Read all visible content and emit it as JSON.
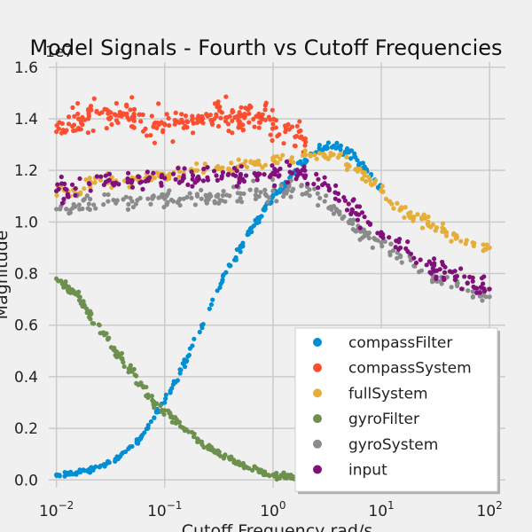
{
  "chart_data": {
    "type": "scatter",
    "title": "Model Signals - Fourth vs Cutoff Frequencies",
    "xlabel": "Cutoff Frequency rad/s",
    "ylabel": "Magnitude",
    "y_offset_text": "1e7",
    "x_scale": "log",
    "xlim": [
      0.0085,
      140
    ],
    "ylim": [
      -0.03,
      1.62
    ],
    "y_ticks": [
      0.0,
      0.2,
      0.4,
      0.6,
      0.8,
      1.0,
      1.2,
      1.4,
      1.6
    ],
    "y_tick_labels": [
      "0.0",
      "0.2",
      "0.4",
      "0.6",
      "0.8",
      "1.0",
      "1.2",
      "1.4",
      "1.6"
    ],
    "x_ticks": [
      0.01,
      0.1,
      1,
      10,
      100
    ],
    "x_tick_labels": [
      {
        "base": "10",
        "exp": "−2"
      },
      {
        "base": "10",
        "exp": "−1"
      },
      {
        "base": "10",
        "exp": "0"
      },
      {
        "base": "10",
        "exp": "1"
      },
      {
        "base": "10",
        "exp": "2"
      }
    ],
    "grid": true,
    "legend_position": "lower-right",
    "series": [
      {
        "name": "compassFilter",
        "color": "#008fd5",
        "points": [
          [
            0.01,
            0.02
          ],
          [
            0.013,
            0.025
          ],
          [
            0.016,
            0.03
          ],
          [
            0.02,
            0.04
          ],
          [
            0.025,
            0.05
          ],
          [
            0.03,
            0.07
          ],
          [
            0.035,
            0.08
          ],
          [
            0.04,
            0.1
          ],
          [
            0.05,
            0.13
          ],
          [
            0.06,
            0.16
          ],
          [
            0.07,
            0.2
          ],
          [
            0.08,
            0.24
          ],
          [
            0.1,
            0.3
          ],
          [
            0.12,
            0.37
          ],
          [
            0.15,
            0.45
          ],
          [
            0.18,
            0.52
          ],
          [
            0.22,
            0.6
          ],
          [
            0.27,
            0.68
          ],
          [
            0.33,
            0.76
          ],
          [
            0.4,
            0.83
          ],
          [
            0.5,
            0.9
          ],
          [
            0.6,
            0.96
          ],
          [
            0.7,
            1.0
          ],
          [
            0.85,
            1.05
          ],
          [
            1.0,
            1.1
          ],
          [
            1.3,
            1.15
          ],
          [
            1.6,
            1.2
          ],
          [
            2.0,
            1.24
          ],
          [
            2.5,
            1.27
          ],
          [
            3.0,
            1.29
          ],
          [
            4.0,
            1.29
          ],
          [
            5.0,
            1.27
          ],
          [
            6.0,
            1.24
          ],
          [
            7.0,
            1.21
          ],
          [
            8.0,
            1.18
          ],
          [
            10.0,
            1.14
          ]
        ]
      },
      {
        "name": "compassSystem",
        "color": "#fc4f30",
        "points": [
          [
            0.01,
            1.35
          ],
          [
            0.013,
            1.38
          ],
          [
            0.016,
            1.4
          ],
          [
            0.02,
            1.41
          ],
          [
            0.025,
            1.42
          ],
          [
            0.03,
            1.42
          ],
          [
            0.04,
            1.41
          ],
          [
            0.05,
            1.4
          ],
          [
            0.06,
            1.39
          ],
          [
            0.08,
            1.38
          ],
          [
            0.1,
            1.38
          ],
          [
            0.13,
            1.39
          ],
          [
            0.16,
            1.39
          ],
          [
            0.2,
            1.4
          ],
          [
            0.25,
            1.41
          ],
          [
            0.3,
            1.41
          ],
          [
            0.4,
            1.41
          ],
          [
            0.5,
            1.41
          ],
          [
            0.6,
            1.42
          ],
          [
            0.7,
            1.41
          ],
          [
            0.8,
            1.4
          ],
          [
            1.0,
            1.38
          ],
          [
            1.3,
            1.35
          ],
          [
            1.6,
            1.33
          ],
          [
            2.0,
            1.31
          ]
        ]
      },
      {
        "name": "fullSystem",
        "color": "#e5ae38",
        "points": [
          [
            0.01,
            1.12
          ],
          [
            0.015,
            1.13
          ],
          [
            0.02,
            1.15
          ],
          [
            0.03,
            1.16
          ],
          [
            0.05,
            1.16
          ],
          [
            0.07,
            1.17
          ],
          [
            0.1,
            1.18
          ],
          [
            0.15,
            1.19
          ],
          [
            0.2,
            1.2
          ],
          [
            0.3,
            1.21
          ],
          [
            0.5,
            1.22
          ],
          [
            0.7,
            1.23
          ],
          [
            1.0,
            1.24
          ],
          [
            1.5,
            1.25
          ],
          [
            2.0,
            1.26
          ],
          [
            3.0,
            1.26
          ],
          [
            4.0,
            1.25
          ],
          [
            5.0,
            1.22
          ],
          [
            7.0,
            1.18
          ],
          [
            10.0,
            1.12
          ],
          [
            12.0,
            1.08
          ],
          [
            15.0,
            1.05
          ],
          [
            20.0,
            1.02
          ],
          [
            30.0,
            0.99
          ],
          [
            40.0,
            0.96
          ],
          [
            50.0,
            0.94
          ],
          [
            70.0,
            0.92
          ],
          [
            100.0,
            0.9
          ]
        ]
      },
      {
        "name": "gyroFilter",
        "color": "#6d904f",
        "points": [
          [
            0.01,
            0.78
          ],
          [
            0.012,
            0.75
          ],
          [
            0.015,
            0.72
          ],
          [
            0.018,
            0.68
          ],
          [
            0.02,
            0.65
          ],
          [
            0.025,
            0.6
          ],
          [
            0.03,
            0.55
          ],
          [
            0.035,
            0.5
          ],
          [
            0.04,
            0.47
          ],
          [
            0.05,
            0.42
          ],
          [
            0.06,
            0.37
          ],
          [
            0.07,
            0.33
          ],
          [
            0.08,
            0.3
          ],
          [
            0.1,
            0.27
          ],
          [
            0.12,
            0.24
          ],
          [
            0.15,
            0.2
          ],
          [
            0.2,
            0.16
          ],
          [
            0.25,
            0.13
          ],
          [
            0.3,
            0.11
          ],
          [
            0.4,
            0.08
          ],
          [
            0.5,
            0.06
          ],
          [
            0.6,
            0.045
          ],
          [
            0.8,
            0.03
          ],
          [
            1.0,
            0.02
          ],
          [
            1.3,
            0.012
          ],
          [
            1.6,
            0.008
          ],
          [
            2.0,
            0.005
          ]
        ]
      },
      {
        "name": "gyroSystem",
        "color": "#8b8b8b",
        "points": [
          [
            0.01,
            1.05
          ],
          [
            0.015,
            1.06
          ],
          [
            0.02,
            1.07
          ],
          [
            0.03,
            1.08
          ],
          [
            0.05,
            1.08
          ],
          [
            0.07,
            1.09
          ],
          [
            0.1,
            1.09
          ],
          [
            0.15,
            1.09
          ],
          [
            0.2,
            1.1
          ],
          [
            0.3,
            1.1
          ],
          [
            0.5,
            1.11
          ],
          [
            0.7,
            1.12
          ],
          [
            1.0,
            1.12
          ],
          [
            1.5,
            1.12
          ],
          [
            2.0,
            1.11
          ],
          [
            3.0,
            1.08
          ],
          [
            4.0,
            1.04
          ],
          [
            5.0,
            1.0
          ],
          [
            7.0,
            0.96
          ],
          [
            10.0,
            0.92
          ],
          [
            15.0,
            0.87
          ],
          [
            20.0,
            0.83
          ],
          [
            30.0,
            0.79
          ],
          [
            50.0,
            0.76
          ],
          [
            70.0,
            0.73
          ],
          [
            100.0,
            0.71
          ]
        ]
      },
      {
        "name": "input",
        "color": "#810f7c",
        "points": [
          [
            0.01,
            1.12
          ],
          [
            0.015,
            1.13
          ],
          [
            0.02,
            1.15
          ],
          [
            0.03,
            1.16
          ],
          [
            0.05,
            1.16
          ],
          [
            0.07,
            1.16
          ],
          [
            0.1,
            1.17
          ],
          [
            0.15,
            1.17
          ],
          [
            0.2,
            1.17
          ],
          [
            0.3,
            1.18
          ],
          [
            0.5,
            1.18
          ],
          [
            0.7,
            1.18
          ],
          [
            1.0,
            1.19
          ],
          [
            1.5,
            1.19
          ],
          [
            2.0,
            1.18
          ],
          [
            3.0,
            1.15
          ],
          [
            4.0,
            1.11
          ],
          [
            5.0,
            1.07
          ],
          [
            7.0,
            1.02
          ],
          [
            10.0,
            0.96
          ],
          [
            15.0,
            0.9
          ],
          [
            20.0,
            0.86
          ],
          [
            30.0,
            0.82
          ],
          [
            50.0,
            0.79
          ],
          [
            70.0,
            0.77
          ],
          [
            100.0,
            0.74
          ]
        ]
      }
    ]
  }
}
